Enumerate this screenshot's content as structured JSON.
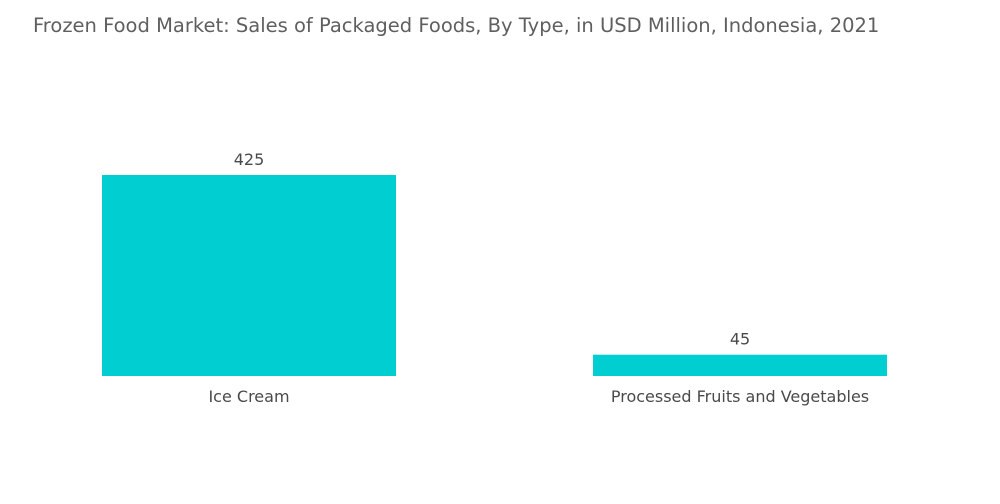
{
  "chart_data": {
    "type": "bar",
    "title": "Frozen Food Market: Sales of Packaged Foods, By Type, in USD Million, Indonesia, 2021",
    "categories": [
      "Ice Cream",
      "Processed Fruits and Vegetables"
    ],
    "values": [
      425,
      45
    ],
    "xlabel": "",
    "ylabel": "",
    "grid": false,
    "legend": "none",
    "bar_color": "#00ced1"
  }
}
